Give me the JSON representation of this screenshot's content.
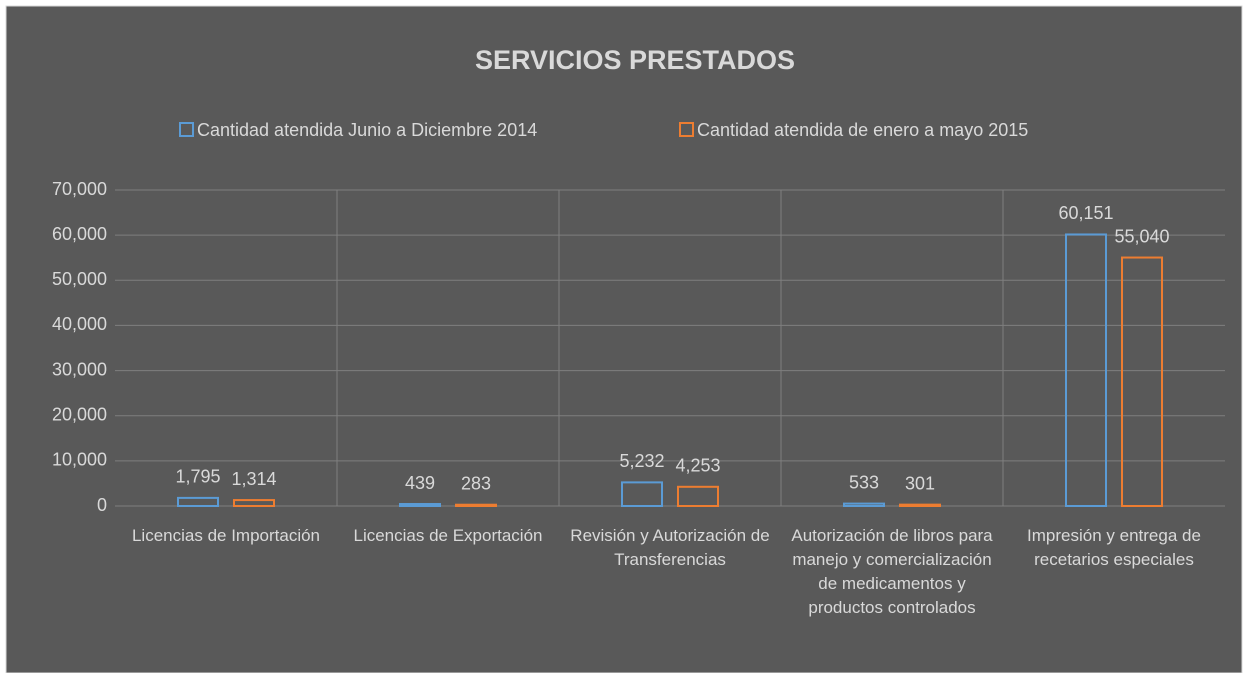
{
  "chart_data": {
    "type": "bar",
    "title": "SERVICIOS PRESTADOS",
    "categories": [
      "Licencias de Importación",
      "Licencias de Exportación",
      "Revisión y Autorización de Transferencias",
      "Autorización de libros para manejo y comercialización de medicamentos y productos controlados",
      "Impresión y entrega de recetarios especiales"
    ],
    "series": [
      {
        "name": "Cantidad atendida Junio a Diciembre 2014",
        "color": "#5b9bd5",
        "values": [
          1795,
          439,
          5232,
          533,
          60151
        ],
        "value_labels": [
          "1,795",
          "439",
          "5,232",
          "533",
          "60,151"
        ]
      },
      {
        "name": "Cantidad atendida de enero a mayo 2015",
        "color": "#ed7d31",
        "values": [
          1314,
          283,
          4253,
          301,
          55040
        ],
        "value_labels": [
          "1,314",
          "283",
          "4,253",
          "301",
          "55,040"
        ]
      }
    ],
    "ylim": [
      0,
      70000
    ],
    "yticks": [
      0,
      {
        "value": 10000,
        "label": "10,000"
      },
      {
        "value": 20000,
        "label": "20,000"
      },
      {
        "value": 30000,
        "label": "30,000"
      },
      {
        "value": 40000,
        "label": "40,000"
      },
      {
        "value": 50000,
        "label": "50,000"
      },
      {
        "value": 60000,
        "label": "60,000"
      },
      {
        "value": 70000,
        "label": "70,000"
      }
    ],
    "grid": true,
    "legend": "top"
  }
}
